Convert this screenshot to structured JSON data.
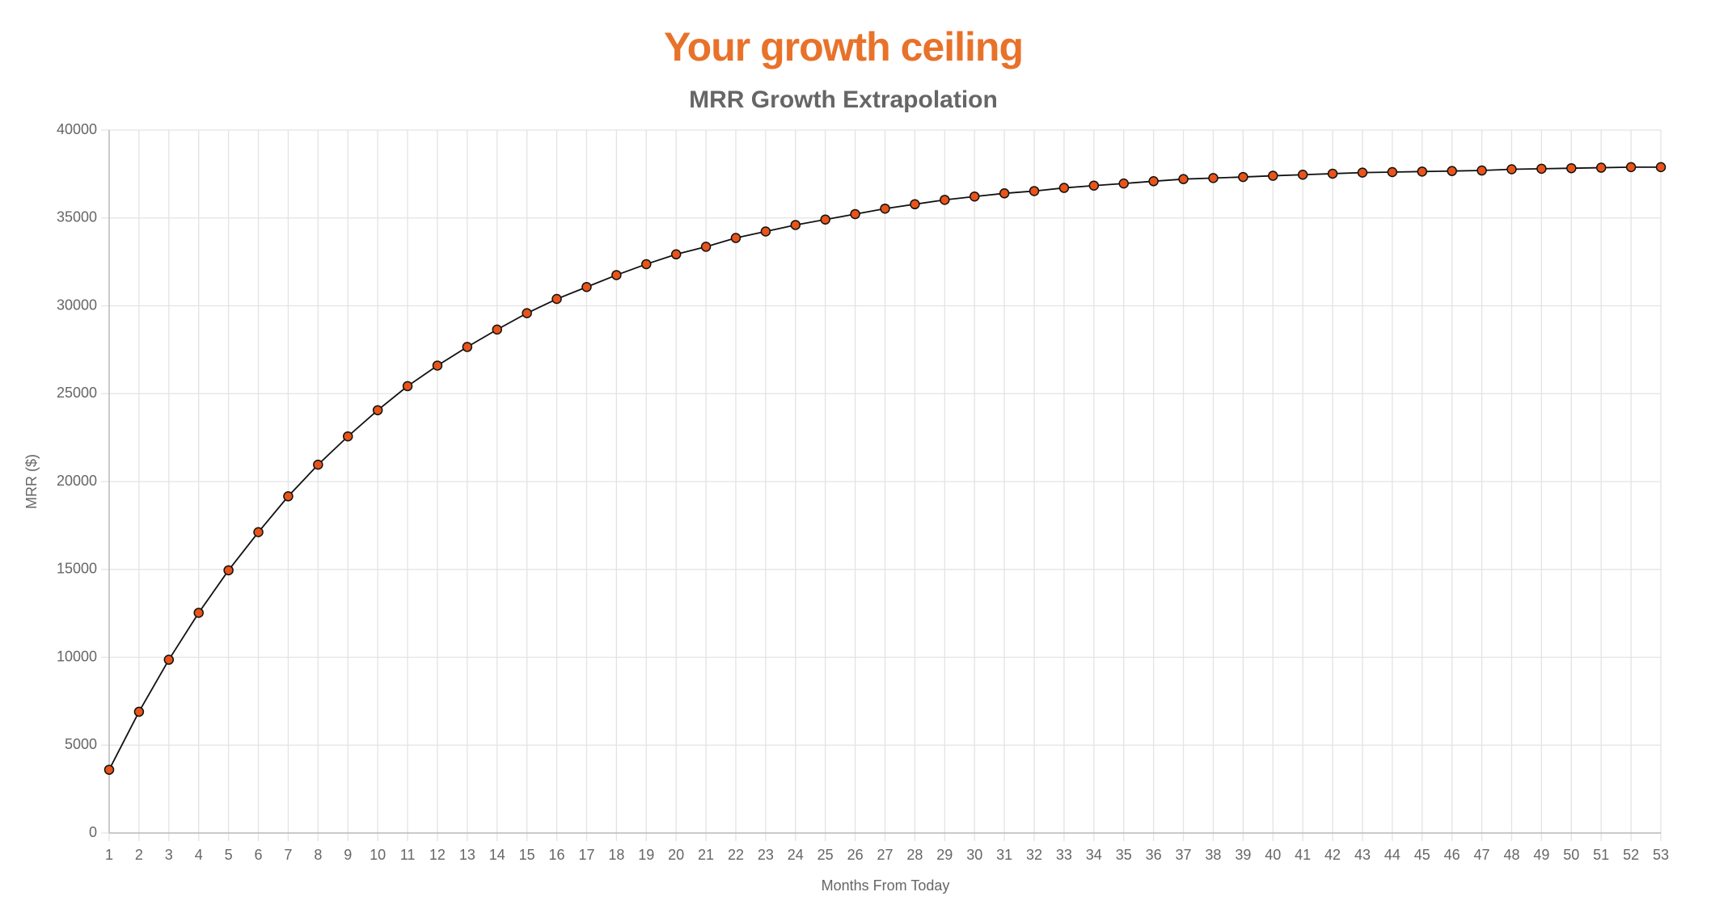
{
  "chart_data": {
    "type": "line",
    "title": "Your growth ceiling",
    "subtitle": "MRR Growth Extrapolation",
    "x_label": "Months From Today",
    "y_label": "MRR ($)",
    "categories": [
      1,
      2,
      3,
      4,
      5,
      6,
      7,
      8,
      9,
      10,
      11,
      12,
      13,
      14,
      15,
      16,
      17,
      18,
      19,
      20,
      21,
      22,
      23,
      24,
      25,
      26,
      27,
      28,
      29,
      30,
      31,
      32,
      33,
      34,
      35,
      36,
      37,
      38,
      39,
      40,
      41,
      42,
      43,
      44,
      45,
      46,
      47,
      48,
      49,
      50,
      51,
      52,
      53
    ],
    "series": [
      {
        "name": "MRR",
        "color": "#e8541a",
        "values": [
          3600,
          6900,
          9860,
          12530,
          14950,
          17120,
          19160,
          20960,
          22570,
          24060,
          25430,
          26600,
          27660,
          28650,
          29580,
          30390,
          31070,
          31750,
          32370,
          32930,
          33360,
          33860,
          34230,
          34600,
          34910,
          35220,
          35530,
          35780,
          36030,
          36220,
          36400,
          36530,
          36710,
          36840,
          36960,
          37090,
          37210,
          37270,
          37330,
          37400,
          37460,
          37520,
          37580,
          37610,
          37640,
          37670,
          37700,
          37770,
          37800,
          37830,
          37860,
          37890,
          37890
        ]
      }
    ],
    "ylim": [
      0,
      40000
    ],
    "yticks": [
      0,
      5000,
      10000,
      15000,
      20000,
      25000,
      30000,
      35000,
      40000
    ],
    "grid": true
  }
}
